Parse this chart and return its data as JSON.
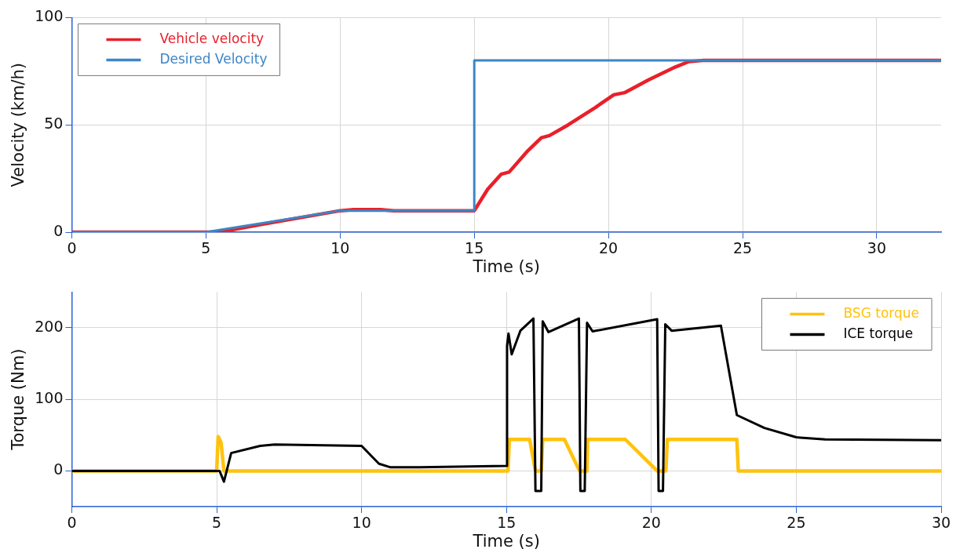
{
  "chart_data": [
    {
      "type": "line",
      "xlabel": "Time (s)",
      "ylabel": "Velocity (km/h)",
      "xlim": [
        0,
        32.4
      ],
      "xticks": [
        0,
        5,
        10,
        15,
        20,
        25,
        30
      ],
      "ylim": [
        0,
        100
      ],
      "yticks": [
        0,
        50,
        100
      ],
      "grid": true,
      "legend": "top left",
      "series": [
        {
          "name": "Vehicle velocity",
          "color": "#e8202a",
          "x": [
            0,
            5,
            5.5,
            7,
            10,
            10.5,
            11.5,
            12,
            15,
            15.5,
            16,
            16.3,
            17,
            17.5,
            17.8,
            18.5,
            19.5,
            20.2,
            20.6,
            21.5,
            22.5,
            23,
            23.5,
            32.4
          ],
          "values": [
            0,
            0,
            0,
            3.5,
            10,
            10.5,
            10.5,
            10,
            10,
            20,
            27,
            28,
            38,
            44,
            45,
            50,
            58,
            64,
            65,
            71,
            77,
            79.5,
            80,
            80
          ]
        },
        {
          "name": "Desired Velocity",
          "color": "#3d85c6",
          "x": [
            0,
            5,
            10,
            15,
            15,
            32.4
          ],
          "values": [
            0,
            0,
            10,
            10,
            80,
            80
          ]
        }
      ]
    },
    {
      "type": "line",
      "xlabel": "Time (s)",
      "ylabel": "Torque (Nm)",
      "xlim": [
        0,
        30
      ],
      "xticks": [
        0,
        5,
        10,
        15,
        20,
        25,
        30
      ],
      "ylim": [
        -50,
        250
      ],
      "yticks": [
        0,
        100,
        200
      ],
      "grid": true,
      "legend": "top right",
      "series": [
        {
          "name": "BSG torque",
          "color": "#ffc20e",
          "x": [
            0,
            5,
            5.05,
            5.15,
            5.25,
            15.05,
            15.1,
            15.8,
            16,
            16.2,
            16.25,
            17,
            17.52,
            17.78,
            17.8,
            19.1,
            20.2,
            20.5,
            20.55,
            22.95,
            23,
            30
          ],
          "values": [
            0,
            0,
            48,
            40,
            0,
            0,
            44,
            44,
            0,
            0,
            44,
            44,
            0,
            0,
            44,
            44,
            0,
            0,
            44,
            44,
            0,
            0
          ]
        },
        {
          "name": "ICE torque",
          "color": "#000000",
          "x": [
            0,
            5.1,
            5.25,
            5.5,
            6.5,
            7,
            10,
            10.6,
            11,
            12,
            15,
            15.02,
            15.07,
            15.18,
            15.48,
            15.93,
            16,
            16.2,
            16.25,
            16.45,
            17.5,
            17.55,
            17.7,
            17.78,
            17.97,
            20.2,
            20.25,
            20.4,
            20.48,
            20.7,
            22.4,
            22.95,
            23.9,
            25,
            26,
            30
          ],
          "values": [
            0,
            0,
            -15,
            25,
            35,
            37,
            35,
            10,
            5,
            5,
            7,
            175,
            192,
            163,
            196,
            213,
            -28,
            -28,
            209,
            194,
            213,
            -28,
            -28,
            207,
            195,
            212,
            -28,
            -28,
            205,
            196,
            203,
            78,
            60,
            47,
            44,
            43
          ]
        }
      ]
    }
  ]
}
